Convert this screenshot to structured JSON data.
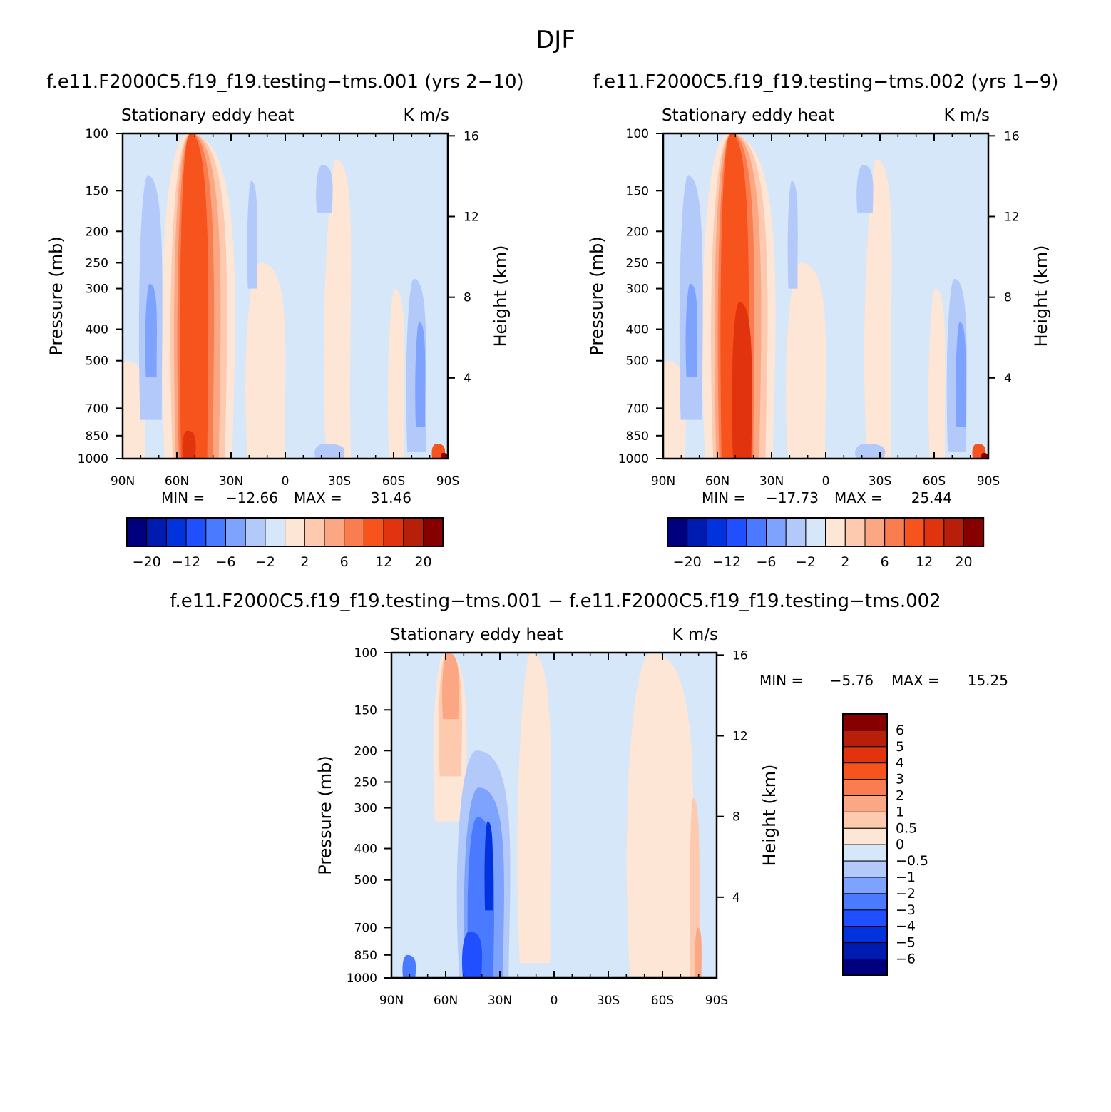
{
  "season": "DJF",
  "colors": {
    "blues": [
      "#00007f",
      "#001bb0",
      "#0033dd",
      "#1f4fff",
      "#4a7aff",
      "#7da3ff",
      "#b2c9fa",
      "#d6e7f9"
    ],
    "reds": [
      "#fde6d5",
      "#fdcab0",
      "#fba784",
      "#fa7d4f",
      "#f7531d",
      "#e1340e",
      "#b71f0b",
      "#870000"
    ]
  },
  "panels": {
    "p1": {
      "title": "f.e11.F2000C5.f19_f19.testing−tms.001 (yrs 2−10)",
      "left_label": "Stationary eddy heat",
      "right_label": "K m/s",
      "ylabel": "Pressure (mb)",
      "y2label": "Height (km)",
      "min_label": "MIN =",
      "min_value": "−12.66",
      "max_label": "MAX =",
      "max_value": "31.46"
    },
    "p2": {
      "title": "f.e11.F2000C5.f19_f19.testing−tms.002 (yrs 1−9)",
      "left_label": "Stationary eddy heat",
      "right_label": "K m/s",
      "ylabel": "Pressure (mb)",
      "y2label": "Height (km)",
      "min_label": "MIN =",
      "min_value": "−17.73",
      "max_label": "MAX =",
      "max_value": "25.44"
    },
    "p3": {
      "title": "f.e11.F2000C5.f19_f19.testing−tms.001 − f.e11.F2000C5.f19_f19.testing−tms.002",
      "left_label": "Stationary eddy heat",
      "right_label": "K m/s",
      "ylabel": "Pressure (mb)",
      "y2label": "Height (km)",
      "min_label": "MIN =",
      "min_value": "−5.76",
      "max_label": "MAX =",
      "max_value": "15.25"
    }
  },
  "colorbar_top_labels": [
    "−20",
    "−12",
    "−6",
    "−2",
    "2",
    "6",
    "12",
    "20"
  ],
  "colorbar_diff_labels": [
    "6",
    "5",
    "4",
    "3",
    "2",
    "1",
    "0.5",
    "0",
    "−0.5",
    "−1",
    "−2",
    "−3",
    "−4",
    "−5",
    "−6"
  ],
  "chart_data": [
    {
      "type": "heatmap",
      "title": "f.e11.F2000C5.f19_f19.testing−tms.001 (yrs 2−10)",
      "variable": "Stationary eddy heat",
      "units": "K m/s",
      "xlabel": "",
      "ylabel": "Pressure (mb)",
      "y2label": "Height (km)",
      "x_ticks": [
        "90N",
        "60N",
        "30N",
        "0",
        "30S",
        "60S",
        "90S"
      ],
      "y_ticks": [
        100,
        150,
        200,
        250,
        300,
        400,
        500,
        700,
        850,
        1000
      ],
      "y2_ticks": [
        4,
        8,
        12,
        16
      ],
      "xlim": [
        -90,
        90
      ],
      "ylim": [
        1000,
        100
      ],
      "contour_levels": [
        -20,
        -16,
        -12,
        -8,
        -6,
        -4,
        -2,
        0,
        2,
        4,
        6,
        8,
        12,
        16,
        20
      ],
      "min": -12.66,
      "max": 31.46,
      "features": [
        {
          "lat": 47,
          "p_range": [
            100,
            1000
          ],
          "value": 14,
          "desc": "positive heat flux column"
        },
        {
          "lat": 72,
          "p_range": [
            150,
            700
          ],
          "value": -4
        },
        {
          "lat": -75,
          "p_range": [
            300,
            900
          ],
          "value": -6
        },
        {
          "lat": -85,
          "p_range": [
            850,
            1000
          ],
          "value": 20
        }
      ]
    },
    {
      "type": "heatmap",
      "title": "f.e11.F2000C5.f19_f19.testing−tms.002 (yrs 1−9)",
      "variable": "Stationary eddy heat",
      "units": "K m/s",
      "xlabel": "",
      "ylabel": "Pressure (mb)",
      "y2label": "Height (km)",
      "x_ticks": [
        "90N",
        "60N",
        "30N",
        "0",
        "30S",
        "60S",
        "90S"
      ],
      "y_ticks": [
        100,
        150,
        200,
        250,
        300,
        400,
        500,
        700,
        850,
        1000
      ],
      "y2_ticks": [
        4,
        8,
        12,
        16
      ],
      "xlim": [
        -90,
        90
      ],
      "ylim": [
        1000,
        100
      ],
      "contour_levels": [
        -20,
        -16,
        -12,
        -8,
        -6,
        -4,
        -2,
        0,
        2,
        4,
        6,
        8,
        12,
        16,
        20
      ],
      "min": -17.73,
      "max": 25.44,
      "features": [
        {
          "lat": 47,
          "p_range": [
            100,
            1000
          ],
          "value": 14,
          "desc": "positive heat flux column"
        },
        {
          "lat": 75,
          "p_range": [
            150,
            750
          ],
          "value": -4
        },
        {
          "lat": -75,
          "p_range": [
            300,
            900
          ],
          "value": -6
        },
        {
          "lat": -85,
          "p_range": [
            850,
            1000
          ],
          "value": 20
        }
      ]
    },
    {
      "type": "heatmap",
      "title": "f.e11.F2000C5.f19_f19.testing−tms.001 − f.e11.F2000C5.f19_f19.testing−tms.002",
      "variable": "Stationary eddy heat",
      "units": "K m/s",
      "xlabel": "",
      "ylabel": "Pressure (mb)",
      "y2label": "Height (km)",
      "x_ticks": [
        "90N",
        "60N",
        "30N",
        "0",
        "30S",
        "60S",
        "90S"
      ],
      "y_ticks": [
        100,
        150,
        200,
        250,
        300,
        400,
        500,
        700,
        850,
        1000
      ],
      "y2_ticks": [
        4,
        8,
        12,
        16
      ],
      "xlim": [
        -90,
        90
      ],
      "ylim": [
        1000,
        100
      ],
      "contour_levels": [
        -6,
        -5,
        -4,
        -3,
        -2,
        -1,
        -0.5,
        0,
        0.5,
        1,
        2,
        3,
        4,
        5,
        6
      ],
      "min": -5.76,
      "max": 15.25,
      "features": [
        {
          "lat": 57,
          "p_range": [
            100,
            250
          ],
          "value": 2
        },
        {
          "lat": 42,
          "p_range": [
            250,
            1000
          ],
          "value": -3
        },
        {
          "lat": 35,
          "p_range": [
            300,
            600
          ],
          "value": -5
        },
        {
          "lat": -78,
          "p_range": [
            250,
            1000
          ],
          "value": 1
        }
      ]
    }
  ]
}
